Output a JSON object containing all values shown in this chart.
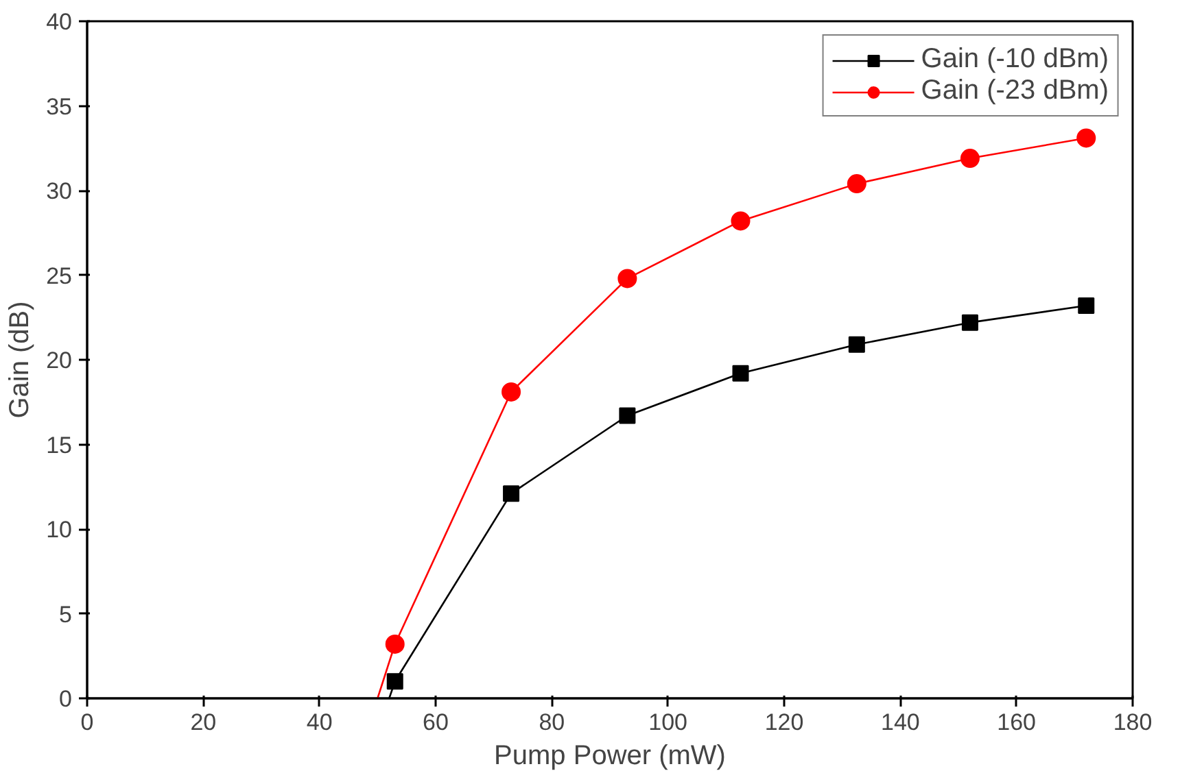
{
  "chart_data": {
    "type": "line",
    "xlabel": "Pump Power (mW)",
    "ylabel": "Gain (dB)",
    "xlim": [
      0,
      180
    ],
    "xticks": [
      0,
      20,
      40,
      60,
      80,
      100,
      120,
      140,
      160,
      180
    ],
    "ylim": [
      0,
      40
    ],
    "yticks": [
      0,
      5,
      10,
      15,
      20,
      25,
      30,
      35,
      40
    ],
    "grid": false,
    "legend": "top right",
    "line_style": "solid",
    "series": [
      {
        "name": "Gain (-10 dBm)",
        "color": "#000000",
        "marker": "square",
        "x": [
          53,
          73,
          93,
          112.5,
          132.5,
          152,
          172
        ],
        "values": [
          1.0,
          12.1,
          16.7,
          19.2,
          20.9,
          22.2,
          23.2
        ]
      },
      {
        "name": "Gain (-23 dBm)",
        "color": "#ff0000",
        "marker": "circle",
        "x": [
          53,
          73,
          93,
          112.5,
          132.5,
          152,
          172
        ],
        "values": [
          3.2,
          18.1,
          24.8,
          28.2,
          30.4,
          31.9,
          33.1
        ]
      },
      {
        "color": "#000000",
        "marker": "none",
        "x": [
          52,
          53
        ],
        "values": [
          0,
          1.0
        ]
      },
      {
        "color": "#ff0000",
        "marker": "none",
        "x": [
          50,
          53
        ],
        "values": [
          0,
          3.2
        ]
      }
    ]
  }
}
